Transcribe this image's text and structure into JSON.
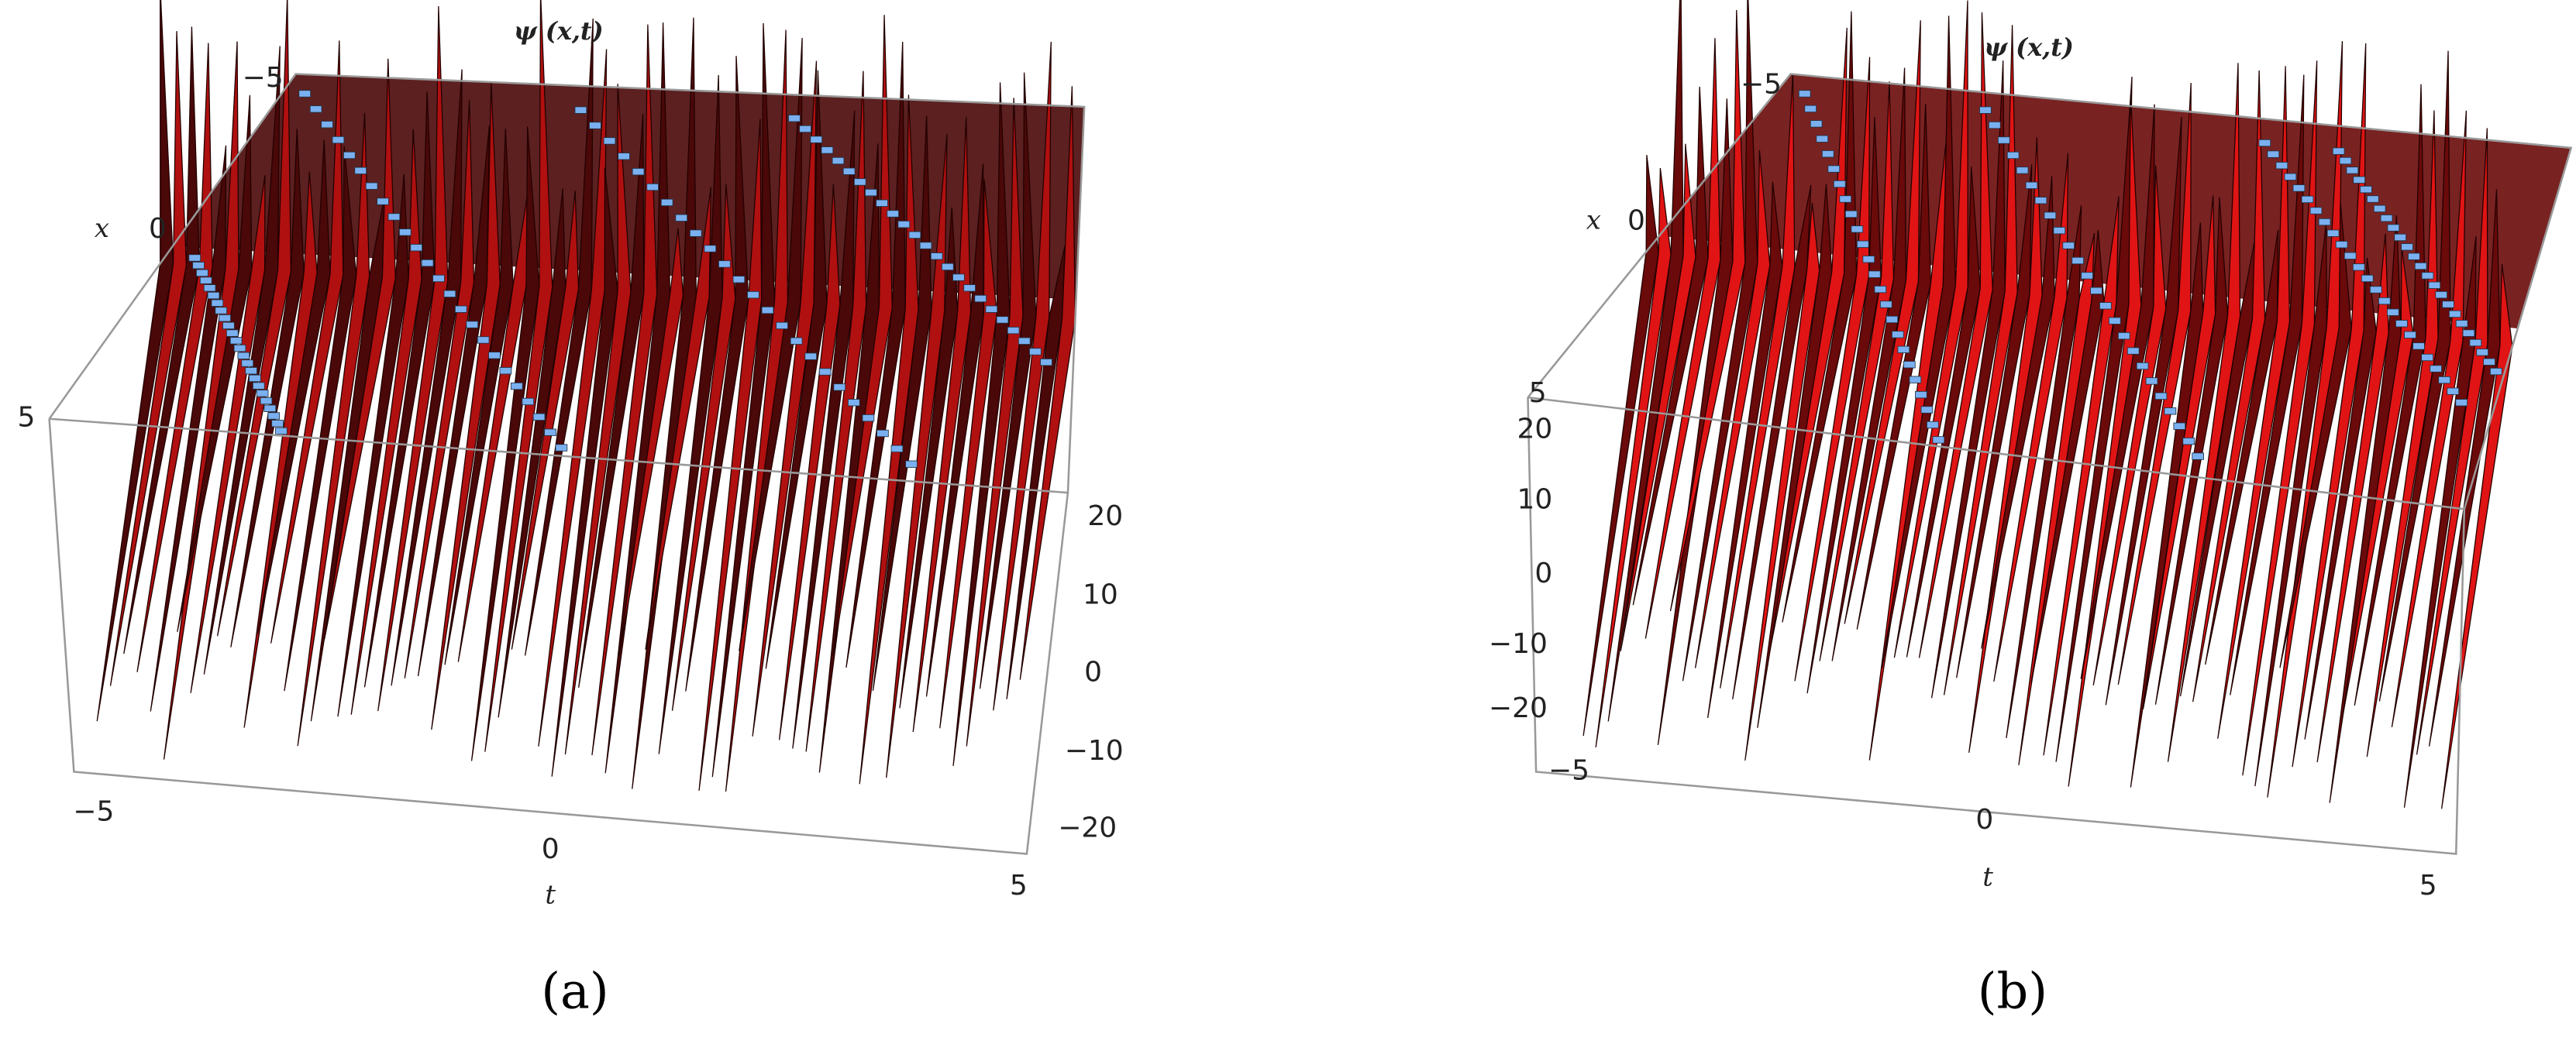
{
  "panels": [
    {
      "title": "ψ (x,t)",
      "x_label": "x",
      "t_label": "t",
      "x_ticks": [
        "−5",
        "0",
        "5"
      ],
      "t_ticks": [
        "−5",
        "0",
        "5"
      ],
      "z_ticks": [
        "20",
        "10",
        "0",
        "−10",
        "−20"
      ],
      "caption": "(a)"
    },
    {
      "title": "ψ (x,t)",
      "x_label": "x",
      "t_label": "t",
      "x_ticks": [
        "−5",
        "0",
        "5"
      ],
      "t_ticks": [
        "−5",
        "0",
        "5"
      ],
      "z_ticks": [
        "20",
        "10",
        "0",
        "−10",
        "−20"
      ],
      "caption": "(b)"
    }
  ]
}
